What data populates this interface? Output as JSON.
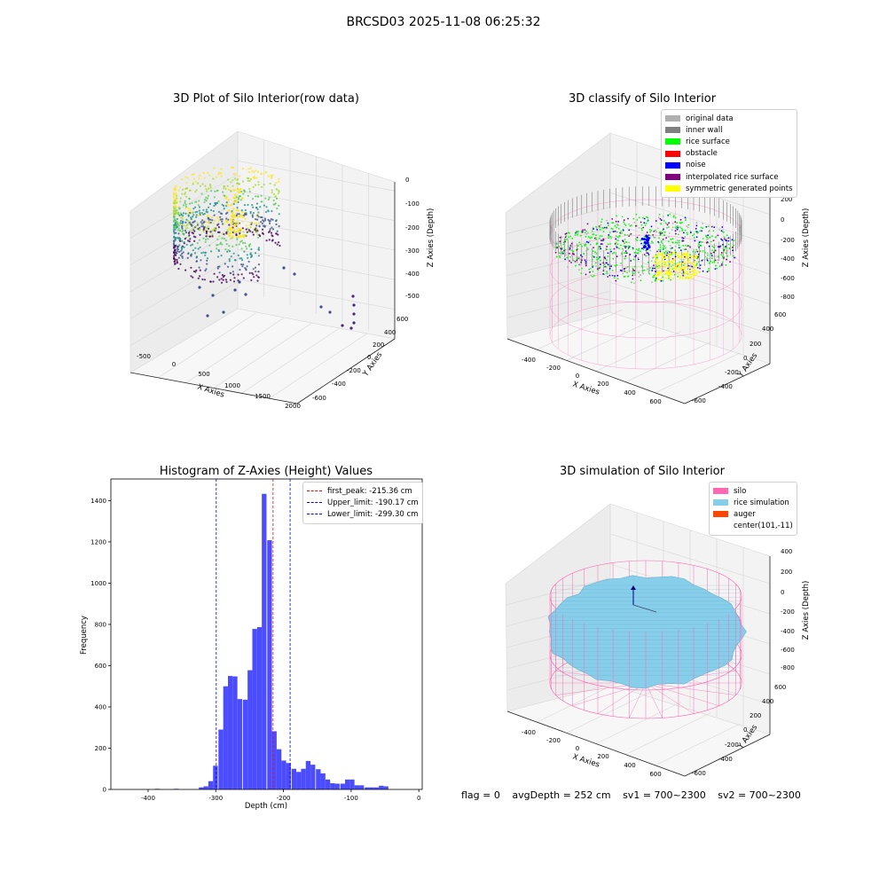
{
  "figure": {
    "suptitle": "BRCSD03 2025-11-08 06:25:32",
    "footer": {
      "flag": "flag = 0",
      "avg_depth": "avgDepth = 252 cm",
      "sv1": "sv1 = 700~2300",
      "sv2": "sv2 = 700~2300"
    }
  },
  "chart_data": [
    {
      "type": "scatter",
      "title": "3D Plot of Silo Interior(row data)",
      "xlabel": "X Axies",
      "ylabel": "Y Axies",
      "zlabel": "Z Axies (Depth)",
      "x_ticks": [
        "-500",
        "0",
        "500",
        "1000",
        "1500",
        "2000"
      ],
      "y_ticks": [
        "-600",
        "-400",
        "-200",
        "0",
        "200",
        "400",
        "600"
      ],
      "z_ticks": [
        "0",
        "-100",
        "-200",
        "-300",
        "-400",
        "-500"
      ],
      "colormap": "viridis",
      "point_count_approx": 5000
    },
    {
      "type": "scatter",
      "title": "3D classify of Silo Interior",
      "xlabel": "X Axies",
      "ylabel": "Y Axies",
      "zlabel": "Z Axies (Depth)",
      "x_ticks": [
        "-400",
        "-200",
        "0",
        "200",
        "400",
        "600"
      ],
      "y_ticks": [
        "-600",
        "-400",
        "-200",
        "0",
        "200",
        "400",
        "600"
      ],
      "z_ticks": [
        "200",
        "0",
        "-200",
        "-400",
        "-600",
        "-800"
      ],
      "legend": [
        {
          "label": "original data",
          "color": "#b0b0b0"
        },
        {
          "label": "inner wall",
          "color": "#808080"
        },
        {
          "label": "rice surface",
          "color": "#00ff00"
        },
        {
          "label": "obstacle",
          "color": "#ff0000"
        },
        {
          "label": "noise",
          "color": "#0000ff"
        },
        {
          "label": "interpolated rice surface",
          "color": "#800080"
        },
        {
          "label": "symmetric generated points",
          "color": "#ffff00"
        }
      ]
    },
    {
      "type": "bar",
      "title": "Histogram of Z-Axies (Height) Values",
      "xlabel": "Depth (cm)",
      "ylabel": "Frequency",
      "xlim": [
        -455,
        5
      ],
      "ylim": [
        0,
        1505
      ],
      "x_ticks": [
        -400,
        -300,
        -200,
        -100,
        0
      ],
      "y_ticks": [
        0,
        200,
        400,
        600,
        800,
        1000,
        1200,
        1400
      ],
      "bar_color": "#0000ff",
      "bin_width": 7.2,
      "bins": [
        [
          -390,
          3
        ],
        [
          -362,
          3
        ],
        [
          -325,
          10
        ],
        [
          -318,
          15
        ],
        [
          -311,
          40
        ],
        [
          -304,
          115
        ],
        [
          -296,
          290
        ],
        [
          -289,
          500
        ],
        [
          -282,
          550
        ],
        [
          -275,
          548
        ],
        [
          -268,
          438
        ],
        [
          -260,
          435
        ],
        [
          -253,
          578
        ],
        [
          -246,
          778
        ],
        [
          -239,
          787
        ],
        [
          -232,
          1433
        ],
        [
          -224,
          1208
        ],
        [
          -217,
          282
        ],
        [
          -210,
          195
        ],
        [
          -203,
          140
        ],
        [
          -196,
          128
        ],
        [
          -188,
          100
        ],
        [
          -181,
          85
        ],
        [
          -174,
          100
        ],
        [
          -167,
          138
        ],
        [
          -160,
          120
        ],
        [
          -152,
          98
        ],
        [
          -145,
          78
        ],
        [
          -138,
          48
        ],
        [
          -131,
          30
        ],
        [
          -124,
          28
        ],
        [
          -116,
          28
        ],
        [
          -109,
          48
        ],
        [
          -102,
          48
        ],
        [
          -95,
          20
        ],
        [
          -88,
          20
        ],
        [
          -80,
          10
        ],
        [
          -73,
          10
        ],
        [
          -66,
          10
        ],
        [
          -59,
          18
        ],
        [
          -52,
          15
        ]
      ],
      "vlines": [
        {
          "label": "first_peak: -215.36 cm",
          "x": -215.36,
          "color": "#ff0000"
        },
        {
          "label": "Upper_limit: -190.17 cm",
          "x": -190.17,
          "color": "#0000ff"
        },
        {
          "label": "Lower_limit: -299.30 cm",
          "x": -299.3,
          "color": "#0000ff"
        }
      ]
    },
    {
      "type": "scatter",
      "title": "3D simulation of Silo Interior",
      "xlabel": "X Axies",
      "ylabel": "Y Axies",
      "zlabel": "Z Axies (Depth)",
      "x_ticks": [
        "-400",
        "-200",
        "0",
        "200",
        "400",
        "600"
      ],
      "y_ticks": [
        "-600",
        "-400",
        "-200",
        "0",
        "200",
        "400",
        "600"
      ],
      "z_ticks": [
        "400",
        "200",
        "0",
        "-200",
        "-400",
        "-600",
        "-800"
      ],
      "legend": [
        {
          "label": "silo",
          "color": "#ff69b4"
        },
        {
          "label": "rice simulation",
          "color": "#87ceeb"
        },
        {
          "label": "auger",
          "color": "#ff4500"
        },
        {
          "label": "center(101,-11)",
          "color": ""
        }
      ]
    }
  ]
}
